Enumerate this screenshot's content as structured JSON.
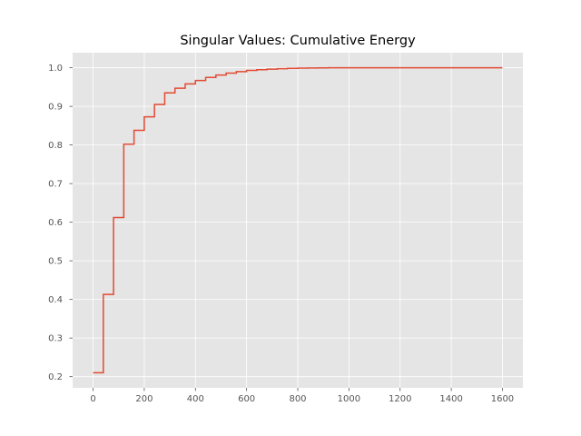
{
  "chart_data": {
    "type": "line",
    "step": true,
    "title": "Singular Values: Cumulative Energy",
    "xlabel": "",
    "ylabel": "",
    "xlim": [
      -80,
      1680
    ],
    "ylim": [
      0.171,
      1.039
    ],
    "xticks": [
      0,
      200,
      400,
      600,
      800,
      1000,
      1200,
      1400,
      1600
    ],
    "yticks": [
      0.2,
      0.3,
      0.4,
      0.5,
      0.6,
      0.7,
      0.8,
      0.9,
      1.0
    ],
    "xtick_labels": [
      "0",
      "200",
      "400",
      "600",
      "800",
      "1000",
      "1200",
      "1400",
      "1600"
    ],
    "ytick_labels": [
      "0.2",
      "0.3",
      "0.4",
      "0.5",
      "0.6",
      "0.7",
      "0.8",
      "0.9",
      "1.0"
    ],
    "grid": true,
    "style": {
      "background": "#E5E5E5",
      "grid_color": "#FFFFFF",
      "line_color": "#E24A33",
      "tick_color": "#555555"
    },
    "series": [
      {
        "x": [
          0,
          40,
          80,
          120,
          160,
          200,
          240,
          280,
          320,
          360,
          400,
          440,
          480,
          520,
          560,
          600,
          640,
          680,
          720,
          760,
          800,
          840,
          880,
          920,
          960,
          1000,
          1200,
          1600
        ],
        "y": [
          0.21,
          0.413,
          0.612,
          0.802,
          0.838,
          0.873,
          0.905,
          0.935,
          0.947,
          0.958,
          0.967,
          0.975,
          0.981,
          0.986,
          0.99,
          0.993,
          0.995,
          0.9965,
          0.9975,
          0.9983,
          0.9989,
          0.9993,
          0.9996,
          0.9998,
          0.9999,
          0.99995,
          1.0,
          1.0
        ]
      }
    ]
  }
}
